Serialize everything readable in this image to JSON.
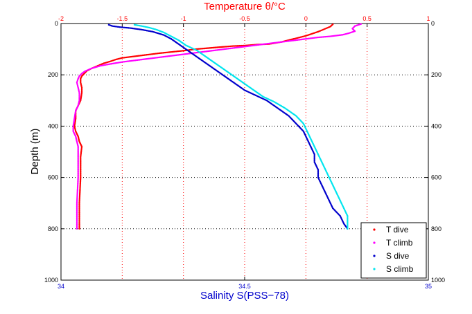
{
  "chart_data": {
    "type": "scatter",
    "title": "Temperature θ/°C",
    "xlabel_bottom": "Salinity S(PSS−78)",
    "xlabel_top": "Temperature θ/°C",
    "ylabel": "Depth (m)",
    "bottom_axis": {
      "range": [
        34,
        35
      ],
      "ticks": [
        "34",
        "34.5",
        "35"
      ],
      "tick_values": [
        34,
        34.5,
        35
      ],
      "color": "#0000cc"
    },
    "top_axis": {
      "range": [
        -2,
        1
      ],
      "ticks": [
        "-2",
        "-1.5",
        "-1",
        "-0.5",
        "0",
        "0.5",
        "1"
      ],
      "tick_values": [
        -2,
        -1.5,
        -1,
        -0.5,
        0,
        0.5,
        1
      ],
      "color": "#ff0000"
    },
    "y_axis": {
      "range": [
        0,
        1000
      ],
      "inverted": true,
      "ticks": [
        "0",
        "200",
        "400",
        "600",
        "800",
        "1000"
      ],
      "tick_values": [
        0,
        200,
        400,
        600,
        800,
        1000
      ]
    },
    "grid": true,
    "legend_position": "bottom-right",
    "series": [
      {
        "name": "T dive",
        "axis": "top",
        "color": "#ff0000",
        "points": [
          [
            -1.85,
            800
          ],
          [
            -1.85,
            700
          ],
          [
            -1.84,
            600
          ],
          [
            -1.84,
            520
          ],
          [
            -1.83,
            480
          ],
          [
            -1.85,
            460
          ],
          [
            -1.86,
            440
          ],
          [
            -1.88,
            420
          ],
          [
            -1.89,
            400
          ],
          [
            -1.88,
            370
          ],
          [
            -1.88,
            340
          ],
          [
            -1.86,
            320
          ],
          [
            -1.84,
            300
          ],
          [
            -1.83,
            270
          ],
          [
            -1.83,
            250
          ],
          [
            -1.84,
            230
          ],
          [
            -1.84,
            215
          ],
          [
            -1.83,
            205
          ],
          [
            -1.81,
            195
          ],
          [
            -1.79,
            185
          ],
          [
            -1.75,
            175
          ],
          [
            -1.7,
            165
          ],
          [
            -1.65,
            155
          ],
          [
            -1.6,
            148
          ],
          [
            -1.55,
            140
          ],
          [
            -1.5,
            134
          ],
          [
            -1.4,
            128
          ],
          [
            -1.3,
            122
          ],
          [
            -1.2,
            116
          ],
          [
            -1.1,
            111
          ],
          [
            -1.0,
            106
          ],
          [
            -0.9,
            100
          ],
          [
            -0.8,
            96
          ],
          [
            -0.7,
            92
          ],
          [
            -0.6,
            88
          ],
          [
            -0.5,
            86
          ],
          [
            -0.4,
            82
          ],
          [
            -0.3,
            80
          ],
          [
            -0.25,
            76
          ],
          [
            -0.2,
            72
          ],
          [
            -0.15,
            66
          ],
          [
            -0.1,
            60
          ],
          [
            -0.05,
            54
          ],
          [
            0.0,
            48
          ],
          [
            0.05,
            40
          ],
          [
            0.1,
            32
          ],
          [
            0.15,
            22
          ],
          [
            0.2,
            12
          ],
          [
            0.22,
            3
          ]
        ]
      },
      {
        "name": "T climb",
        "axis": "top",
        "color": "#ff00ff",
        "points": [
          [
            -1.87,
            800
          ],
          [
            -1.87,
            700
          ],
          [
            -1.86,
            600
          ],
          [
            -1.86,
            520
          ],
          [
            -1.86,
            480
          ],
          [
            -1.87,
            460
          ],
          [
            -1.88,
            440
          ],
          [
            -1.9,
            420
          ],
          [
            -1.9,
            400
          ],
          [
            -1.89,
            370
          ],
          [
            -1.88,
            340
          ],
          [
            -1.86,
            320
          ],
          [
            -1.85,
            300
          ],
          [
            -1.85,
            270
          ],
          [
            -1.86,
            250
          ],
          [
            -1.87,
            230
          ],
          [
            -1.86,
            215
          ],
          [
            -1.85,
            205
          ],
          [
            -1.83,
            195
          ],
          [
            -1.8,
            185
          ],
          [
            -1.75,
            175
          ],
          [
            -1.68,
            165
          ],
          [
            -1.6,
            158
          ],
          [
            -1.5,
            150
          ],
          [
            -1.4,
            144
          ],
          [
            -1.3,
            138
          ],
          [
            -1.2,
            132
          ],
          [
            -1.1,
            126
          ],
          [
            -1.0,
            120
          ],
          [
            -0.9,
            114
          ],
          [
            -0.8,
            108
          ],
          [
            -0.7,
            102
          ],
          [
            -0.6,
            96
          ],
          [
            -0.5,
            90
          ],
          [
            -0.4,
            84
          ],
          [
            -0.3,
            78
          ],
          [
            -0.2,
            72
          ],
          [
            -0.1,
            66
          ],
          [
            0.0,
            60
          ],
          [
            0.1,
            54
          ],
          [
            0.2,
            50
          ],
          [
            0.3,
            44
          ],
          [
            0.35,
            38
          ],
          [
            0.4,
            30
          ],
          [
            0.38,
            20
          ],
          [
            0.4,
            10
          ],
          [
            0.45,
            2
          ]
        ]
      },
      {
        "name": "S dive",
        "axis": "bottom",
        "color": "#0000cc",
        "points": [
          [
            34.13,
            5
          ],
          [
            34.14,
            10
          ],
          [
            34.16,
            14
          ],
          [
            34.19,
            18
          ],
          [
            34.22,
            24
          ],
          [
            34.25,
            32
          ],
          [
            34.28,
            45
          ],
          [
            34.3,
            60
          ],
          [
            34.32,
            80
          ],
          [
            34.34,
            100
          ],
          [
            34.36,
            120
          ],
          [
            34.38,
            140
          ],
          [
            34.4,
            160
          ],
          [
            34.42,
            180
          ],
          [
            34.44,
            200
          ],
          [
            34.46,
            220
          ],
          [
            34.48,
            240
          ],
          [
            34.5,
            260
          ],
          [
            34.53,
            280
          ],
          [
            34.56,
            300
          ],
          [
            34.59,
            330
          ],
          [
            34.62,
            360
          ],
          [
            34.64,
            390
          ],
          [
            34.66,
            420
          ],
          [
            34.67,
            450
          ],
          [
            34.68,
            480
          ],
          [
            34.69,
            510
          ],
          [
            34.69,
            540
          ],
          [
            34.7,
            570
          ],
          [
            34.7,
            600
          ],
          [
            34.71,
            630
          ],
          [
            34.72,
            660
          ],
          [
            34.73,
            690
          ],
          [
            34.74,
            720
          ],
          [
            34.76,
            750
          ],
          [
            34.77,
            780
          ],
          [
            34.78,
            800
          ]
        ]
      },
      {
        "name": "S climb",
        "axis": "bottom",
        "color": "#00e5ee",
        "points": [
          [
            34.2,
            5
          ],
          [
            34.22,
            10
          ],
          [
            34.24,
            16
          ],
          [
            34.26,
            24
          ],
          [
            34.28,
            35
          ],
          [
            34.3,
            50
          ],
          [
            34.32,
            65
          ],
          [
            34.34,
            85
          ],
          [
            34.37,
            105
          ],
          [
            34.39,
            125
          ],
          [
            34.41,
            145
          ],
          [
            34.43,
            165
          ],
          [
            34.45,
            185
          ],
          [
            34.47,
            205
          ],
          [
            34.49,
            225
          ],
          [
            34.51,
            245
          ],
          [
            34.53,
            265
          ],
          [
            34.55,
            285
          ],
          [
            34.58,
            305
          ],
          [
            34.61,
            330
          ],
          [
            34.64,
            360
          ],
          [
            34.66,
            390
          ],
          [
            34.67,
            420
          ],
          [
            34.68,
            450
          ],
          [
            34.69,
            480
          ],
          [
            34.7,
            510
          ],
          [
            34.71,
            540
          ],
          [
            34.72,
            570
          ],
          [
            34.73,
            600
          ],
          [
            34.74,
            630
          ],
          [
            34.75,
            660
          ],
          [
            34.76,
            690
          ],
          [
            34.77,
            720
          ],
          [
            34.78,
            750
          ],
          [
            34.78,
            780
          ],
          [
            34.78,
            800
          ]
        ]
      }
    ]
  }
}
